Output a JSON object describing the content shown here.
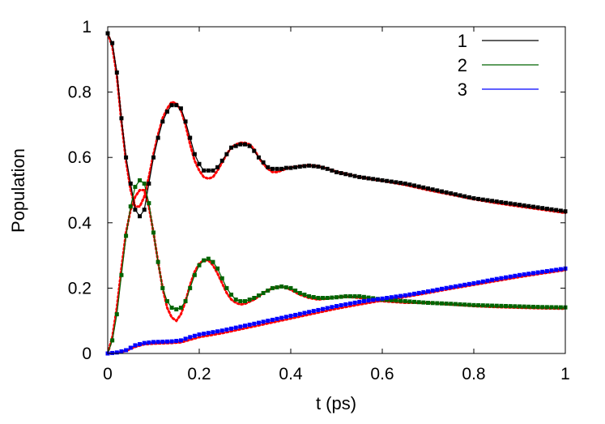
{
  "chart_data": {
    "type": "line",
    "title": "",
    "xlabel": "t (ps)",
    "ylabel": "Population",
    "xlim": [
      0,
      1
    ],
    "ylim": [
      0,
      1
    ],
    "x_ticks": [
      "0",
      "0.2",
      "0.4",
      "0.6",
      "0.8",
      "1"
    ],
    "y_ticks": [
      "0",
      "0.2",
      "0.4",
      "0.6",
      "0.8",
      "1"
    ],
    "grid": false,
    "legend_position": "top-right",
    "reference_color": "#ff0000",
    "series": [
      {
        "name": "1",
        "color": "#000000",
        "x": [
          0,
          0.01,
          0.02,
          0.03,
          0.04,
          0.05,
          0.06,
          0.07,
          0.08,
          0.09,
          0.1,
          0.11,
          0.12,
          0.13,
          0.14,
          0.15,
          0.16,
          0.17,
          0.18,
          0.19,
          0.2,
          0.21,
          0.22,
          0.23,
          0.24,
          0.25,
          0.26,
          0.27,
          0.28,
          0.29,
          0.3,
          0.31,
          0.32,
          0.33,
          0.34,
          0.35,
          0.36,
          0.37,
          0.38,
          0.39,
          0.4,
          0.42,
          0.44,
          0.46,
          0.48,
          0.5,
          0.55,
          0.6,
          0.65,
          0.7,
          0.75,
          0.8,
          0.85,
          0.9,
          0.95,
          1.0
        ],
        "values": [
          0.98,
          0.95,
          0.86,
          0.72,
          0.6,
          0.52,
          0.44,
          0.42,
          0.44,
          0.52,
          0.6,
          0.66,
          0.71,
          0.74,
          0.76,
          0.76,
          0.75,
          0.71,
          0.66,
          0.61,
          0.58,
          0.56,
          0.56,
          0.56,
          0.57,
          0.59,
          0.61,
          0.63,
          0.635,
          0.64,
          0.64,
          0.635,
          0.62,
          0.6,
          0.585,
          0.57,
          0.565,
          0.565,
          0.565,
          0.568,
          0.568,
          0.572,
          0.575,
          0.572,
          0.565,
          0.555,
          0.54,
          0.53,
          0.52,
          0.505,
          0.49,
          0.475,
          0.465,
          0.455,
          0.445,
          0.435
        ]
      },
      {
        "name": "2",
        "color": "#006400",
        "x": [
          0,
          0.01,
          0.02,
          0.03,
          0.04,
          0.05,
          0.06,
          0.07,
          0.08,
          0.09,
          0.1,
          0.11,
          0.12,
          0.13,
          0.14,
          0.15,
          0.16,
          0.17,
          0.18,
          0.19,
          0.2,
          0.21,
          0.22,
          0.23,
          0.24,
          0.25,
          0.26,
          0.27,
          0.28,
          0.29,
          0.3,
          0.32,
          0.34,
          0.36,
          0.38,
          0.4,
          0.42,
          0.44,
          0.46,
          0.48,
          0.5,
          0.52,
          0.55,
          0.6,
          0.65,
          0.7,
          0.75,
          0.8,
          0.85,
          0.9,
          0.95,
          1.0
        ],
        "values": [
          0.0,
          0.04,
          0.12,
          0.24,
          0.36,
          0.45,
          0.51,
          0.53,
          0.52,
          0.46,
          0.37,
          0.28,
          0.2,
          0.16,
          0.14,
          0.135,
          0.14,
          0.16,
          0.2,
          0.24,
          0.27,
          0.285,
          0.29,
          0.28,
          0.26,
          0.23,
          0.2,
          0.18,
          0.165,
          0.16,
          0.16,
          0.17,
          0.185,
          0.2,
          0.205,
          0.2,
          0.185,
          0.175,
          0.17,
          0.17,
          0.172,
          0.175,
          0.175,
          0.165,
          0.16,
          0.155,
          0.152,
          0.148,
          0.146,
          0.144,
          0.142,
          0.141
        ]
      },
      {
        "name": "3",
        "color": "#0000ff",
        "x": [
          0,
          0.02,
          0.04,
          0.06,
          0.08,
          0.1,
          0.12,
          0.14,
          0.16,
          0.18,
          0.2,
          0.25,
          0.3,
          0.35,
          0.4,
          0.45,
          0.5,
          0.55,
          0.6,
          0.65,
          0.7,
          0.75,
          0.8,
          0.85,
          0.9,
          0.95,
          1.0
        ],
        "values": [
          0.0,
          0.003,
          0.01,
          0.025,
          0.032,
          0.035,
          0.036,
          0.037,
          0.04,
          0.05,
          0.058,
          0.07,
          0.085,
          0.1,
          0.115,
          0.13,
          0.145,
          0.158,
          0.168,
          0.178,
          0.19,
          0.203,
          0.215,
          0.228,
          0.24,
          0.25,
          0.26
        ]
      }
    ],
    "reference_series": [
      {
        "x": [
          0,
          0.01,
          0.02,
          0.03,
          0.04,
          0.05,
          0.06,
          0.07,
          0.08,
          0.09,
          0.1,
          0.11,
          0.12,
          0.13,
          0.14,
          0.15,
          0.16,
          0.17,
          0.18,
          0.19,
          0.2,
          0.21,
          0.22,
          0.23,
          0.24,
          0.25,
          0.26,
          0.27,
          0.28,
          0.29,
          0.3,
          0.31,
          0.32,
          0.33,
          0.34,
          0.35,
          0.36,
          0.37,
          0.38,
          0.39,
          0.4,
          0.42,
          0.44,
          0.46,
          0.48,
          0.5,
          0.55,
          0.6,
          0.65,
          0.7,
          0.75,
          0.8,
          0.85,
          0.9,
          0.95,
          1.0
        ],
        "values": [
          0.98,
          0.94,
          0.85,
          0.71,
          0.59,
          0.5,
          0.45,
          0.45,
          0.48,
          0.54,
          0.61,
          0.67,
          0.72,
          0.75,
          0.77,
          0.765,
          0.745,
          0.7,
          0.64,
          0.59,
          0.56,
          0.54,
          0.535,
          0.54,
          0.56,
          0.585,
          0.61,
          0.63,
          0.64,
          0.645,
          0.645,
          0.64,
          0.625,
          0.6,
          0.58,
          0.565,
          0.555,
          0.555,
          0.56,
          0.565,
          0.57,
          0.574,
          0.576,
          0.573,
          0.566,
          0.556,
          0.54,
          0.528,
          0.516,
          0.5,
          0.486,
          0.472,
          0.46,
          0.45,
          0.44,
          0.43
        ]
      },
      {
        "x": [
          0,
          0.01,
          0.02,
          0.03,
          0.04,
          0.05,
          0.06,
          0.07,
          0.08,
          0.09,
          0.1,
          0.11,
          0.12,
          0.13,
          0.14,
          0.15,
          0.16,
          0.17,
          0.18,
          0.19,
          0.2,
          0.21,
          0.22,
          0.23,
          0.24,
          0.25,
          0.26,
          0.27,
          0.28,
          0.29,
          0.3,
          0.32,
          0.34,
          0.36,
          0.38,
          0.4,
          0.42,
          0.44,
          0.46,
          0.48,
          0.5,
          0.52,
          0.55,
          0.6,
          0.65,
          0.7,
          0.75,
          0.8,
          0.85,
          0.9,
          0.95,
          1.0
        ],
        "values": [
          0.0,
          0.05,
          0.14,
          0.26,
          0.37,
          0.44,
          0.48,
          0.5,
          0.5,
          0.45,
          0.37,
          0.28,
          0.2,
          0.14,
          0.11,
          0.1,
          0.12,
          0.16,
          0.21,
          0.25,
          0.275,
          0.285,
          0.285,
          0.27,
          0.245,
          0.215,
          0.185,
          0.165,
          0.155,
          0.15,
          0.152,
          0.165,
          0.185,
          0.2,
          0.205,
          0.195,
          0.18,
          0.17,
          0.165,
          0.168,
          0.172,
          0.174,
          0.17,
          0.16,
          0.155,
          0.155,
          0.15,
          0.145,
          0.142,
          0.14,
          0.138,
          0.137
        ]
      },
      {
        "x": [
          0,
          0.02,
          0.04,
          0.06,
          0.08,
          0.1,
          0.12,
          0.14,
          0.16,
          0.18,
          0.2,
          0.25,
          0.3,
          0.35,
          0.4,
          0.45,
          0.5,
          0.55,
          0.6,
          0.65,
          0.7,
          0.75,
          0.8,
          0.85,
          0.9,
          0.95,
          1.0
        ],
        "values": [
          0.0,
          0.002,
          0.008,
          0.02,
          0.028,
          0.03,
          0.031,
          0.032,
          0.034,
          0.042,
          0.05,
          0.062,
          0.077,
          0.092,
          0.107,
          0.122,
          0.137,
          0.15,
          0.162,
          0.173,
          0.185,
          0.198,
          0.21,
          0.222,
          0.234,
          0.245,
          0.255
        ]
      }
    ]
  }
}
